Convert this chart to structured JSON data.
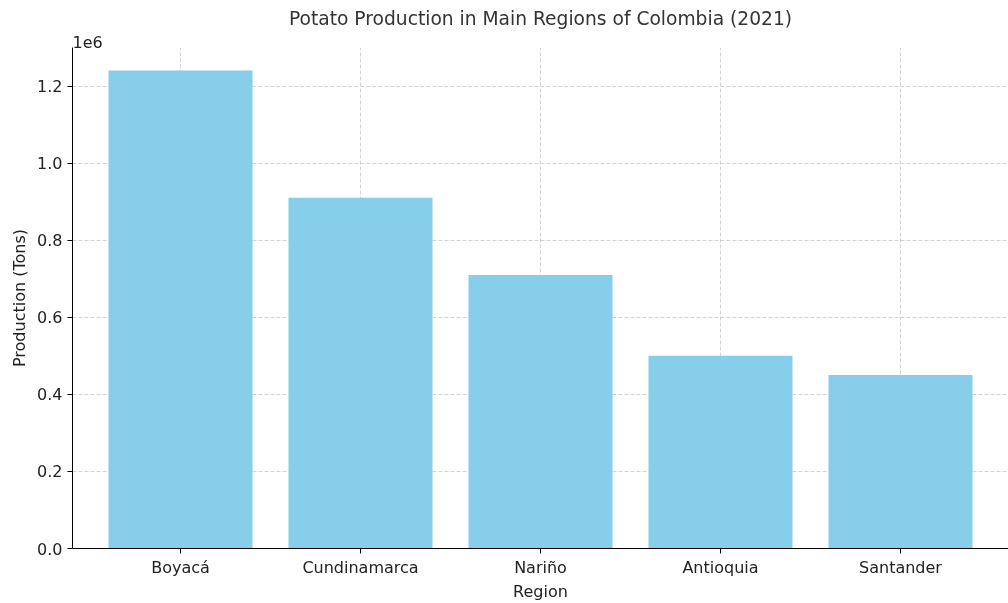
{
  "chart_data": {
    "type": "bar",
    "title": "Potato Production in Main Regions of Colombia (2021)",
    "xlabel": "Region",
    "ylabel": "Production (Tons)",
    "categories": [
      "Boyacá",
      "Cundinamarca",
      "Nariño",
      "Antioquia",
      "Santander"
    ],
    "values": [
      1.24,
      0.91,
      0.71,
      0.5,
      0.45
    ],
    "color": "#87ceeb",
    "ylim": [
      0,
      1.3
    ],
    "yticks": [
      {
        "value": 0,
        "label": "0.0"
      },
      0.2,
      0.4,
      0.6,
      0.8,
      {
        "value": 1,
        "label": "1.0"
      },
      1.2
    ],
    "annotations": [
      "1e6"
    ],
    "grid": true
  }
}
